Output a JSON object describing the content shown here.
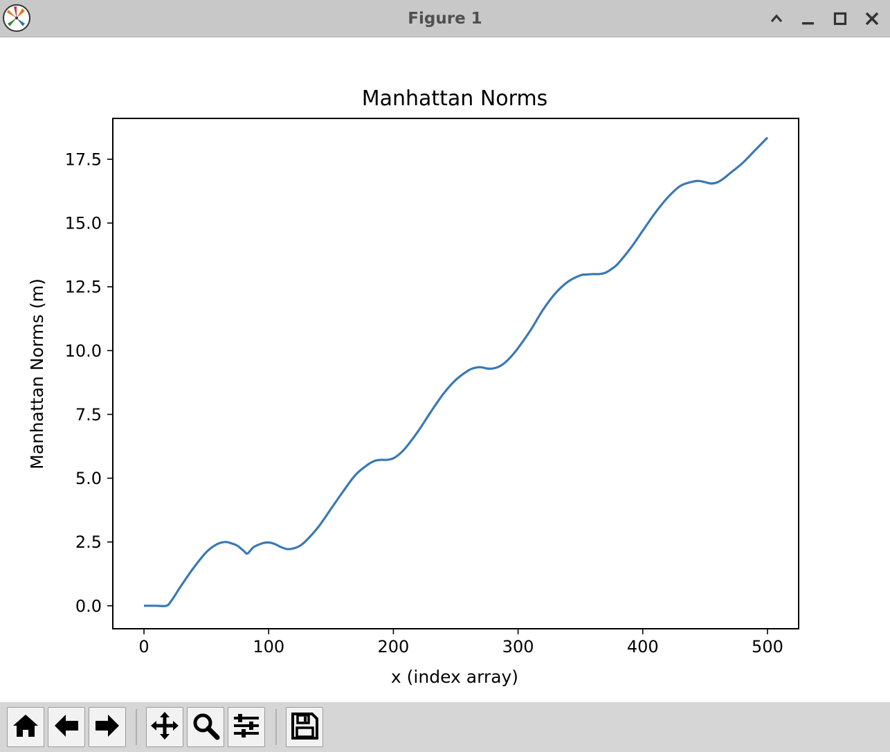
{
  "window": {
    "title": "Figure 1",
    "controls": [
      "chevron-up-icon",
      "minimize-icon",
      "maximize-icon",
      "close-icon"
    ]
  },
  "toolbar": {
    "buttons": [
      "home-icon",
      "back-arrow-icon",
      "forward-arrow-icon",
      "pan-icon",
      "zoom-icon",
      "configure-subplots-icon",
      "save-icon"
    ]
  },
  "chart_data": {
    "type": "line",
    "title": "Manhattan Norms",
    "xlabel": "x (index array)",
    "ylabel": "Manhattan Norms (m)",
    "xlim": [
      -25,
      525
    ],
    "ylim": [
      -0.9,
      19.1
    ],
    "xticks": [
      0,
      100,
      200,
      300,
      400,
      500
    ],
    "xtick_labels": [
      "0",
      "100",
      "200",
      "300",
      "400",
      "500"
    ],
    "yticks": [
      0.0,
      2.5,
      5.0,
      7.5,
      10.0,
      12.5,
      15.0,
      17.5
    ],
    "ytick_labels": [
      "0.0",
      "2.5",
      "5.0",
      "7.5",
      "10.0",
      "12.5",
      "15.0",
      "17.5"
    ],
    "grid": false,
    "line_color": "#3a78b5",
    "series": [
      {
        "x": [
          0,
          10,
          18,
          22,
          30,
          40,
          50,
          58,
          65,
          70,
          75,
          80,
          83,
          88,
          95,
          100,
          105,
          110,
          115,
          120,
          125,
          130,
          140,
          150,
          160,
          170,
          180,
          185,
          190,
          195,
          200,
          205,
          210,
          220,
          230,
          240,
          250,
          260,
          265,
          270,
          275,
          280,
          285,
          290,
          295,
          300,
          310,
          320,
          330,
          340,
          350,
          355,
          360,
          365,
          370,
          375,
          380,
          390,
          400,
          410,
          420,
          430,
          440,
          445,
          450,
          455,
          460,
          465,
          470,
          480,
          490,
          500
        ],
        "y": [
          0.0,
          0.0,
          0.0,
          0.2,
          0.8,
          1.5,
          2.1,
          2.4,
          2.5,
          2.45,
          2.35,
          2.15,
          2.05,
          2.3,
          2.45,
          2.48,
          2.42,
          2.3,
          2.22,
          2.25,
          2.35,
          2.55,
          3.1,
          3.8,
          4.5,
          5.15,
          5.55,
          5.68,
          5.72,
          5.72,
          5.78,
          5.95,
          6.2,
          6.85,
          7.6,
          8.3,
          8.85,
          9.22,
          9.32,
          9.35,
          9.3,
          9.3,
          9.38,
          9.55,
          9.8,
          10.1,
          10.8,
          11.6,
          12.25,
          12.7,
          12.95,
          12.98,
          13.0,
          13.0,
          13.05,
          13.2,
          13.4,
          14.0,
          14.7,
          15.4,
          16.0,
          16.45,
          16.62,
          16.65,
          16.6,
          16.55,
          16.6,
          16.75,
          16.95,
          17.35,
          17.85,
          18.35
        ]
      }
    ]
  }
}
